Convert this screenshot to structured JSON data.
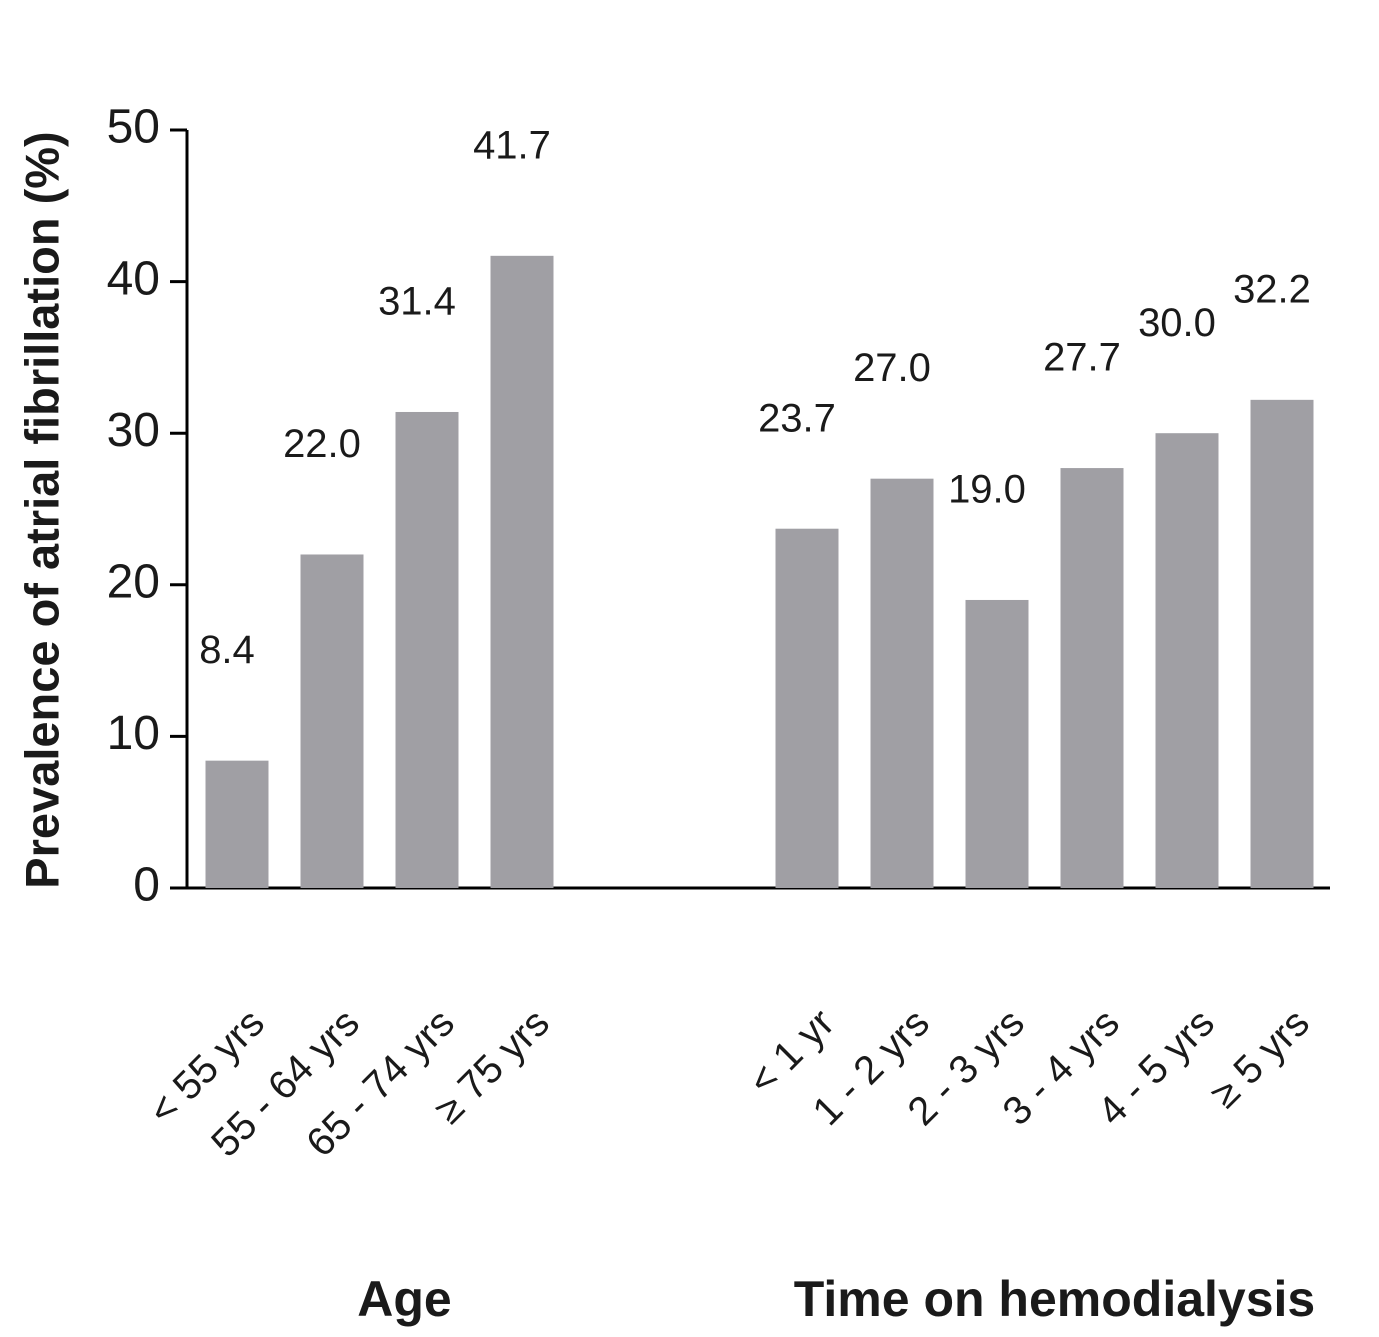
{
  "chart_data": {
    "type": "bar",
    "y_label": "Prevalence of atrial fibrillation (%)",
    "color": "#a09fa4",
    "ylim": [
      0,
      50
    ],
    "yticks": [
      0,
      10,
      20,
      30,
      40,
      50
    ],
    "groups": [
      {
        "name": "Age",
        "categories": [
          "< 55 yrs",
          "55 - 64 yrs",
          "65 - 74 yrs",
          "≥ 75 yrs"
        ],
        "values": [
          8.4,
          22.0,
          31.4,
          41.7
        ],
        "value_labels": [
          "8.4",
          "22.0",
          "31.4",
          "41.7"
        ]
      },
      {
        "name": "Time on hemodialysis",
        "categories": [
          "< 1 yr",
          "1 - 2 yrs",
          "2 - 3 yrs",
          "3 - 4 yrs",
          "4 - 5 yrs",
          "≥ 5 yrs"
        ],
        "values": [
          23.7,
          27.0,
          19.0,
          27.7,
          30.0,
          32.2
        ],
        "value_labels": [
          "23.7",
          "27.0",
          "19.0",
          "27.7",
          "30.0",
          "32.2"
        ]
      }
    ]
  }
}
